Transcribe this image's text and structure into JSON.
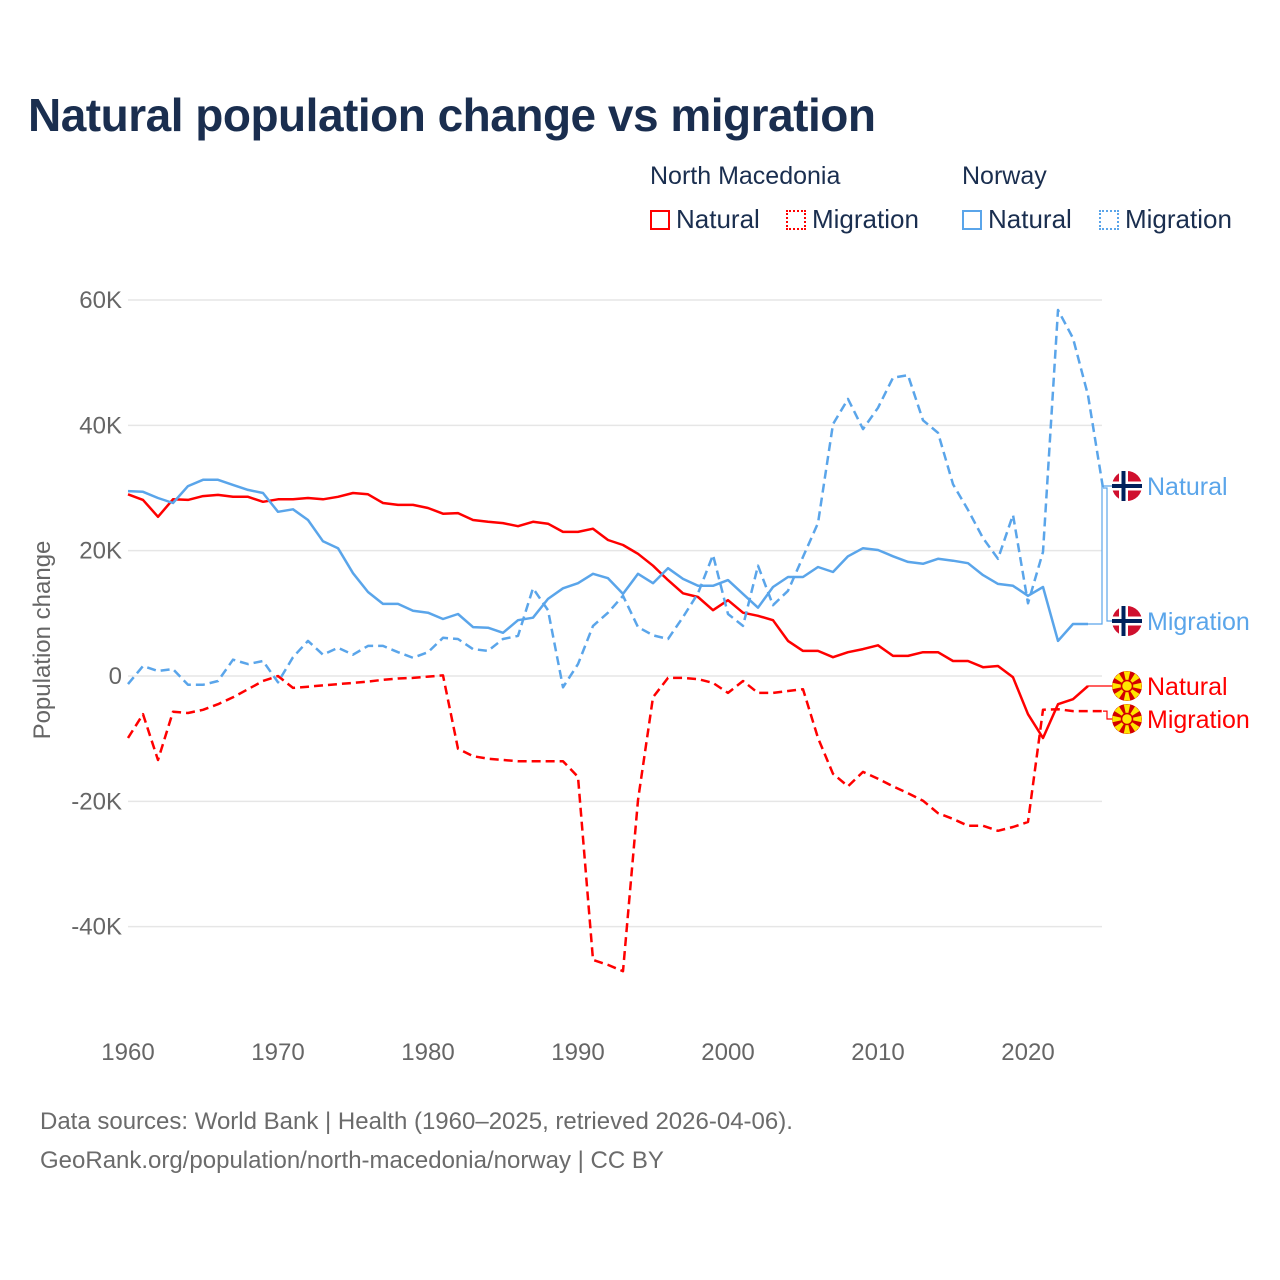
{
  "chart_data": {
    "type": "line",
    "title": "Natural population change vs migration",
    "xlabel": "",
    "ylabel": "Population change",
    "xlim": [
      1960,
      2025
    ],
    "ylim": [
      -50000,
      60000
    ],
    "x_ticks": [
      1960,
      1970,
      1980,
      1990,
      2000,
      2010,
      2020
    ],
    "x_tick_labels": [
      "1960",
      "1970",
      "1980",
      "1990",
      "2000",
      "2010",
      "2020"
    ],
    "y_ticks": [
      60000,
      40000,
      20000,
      0,
      -20000,
      -40000
    ],
    "y_tick_labels": [
      "60K",
      "40K",
      "20K",
      "0",
      "-20K",
      "-40K"
    ],
    "grid": true,
    "legend_placement": "top-right",
    "legend": {
      "groups": [
        {
          "name": "North Macedonia",
          "items": [
            "Natural",
            "Migration"
          ]
        },
        {
          "name": "Norway",
          "items": [
            "Natural",
            "Migration"
          ]
        }
      ]
    },
    "series": [
      {
        "name": "North Macedonia Natural",
        "country": "North Macedonia",
        "kind": "Natural",
        "label": "Natural",
        "color": "#ff0000",
        "dashed": false,
        "start_year": 1960,
        "values": [
          29000,
          28100,
          25400,
          28200,
          28100,
          28700,
          28900,
          28600,
          28600,
          27800,
          28200,
          28200,
          28400,
          28200,
          28600,
          29200,
          29000,
          27600,
          27300,
          27300,
          26800,
          25900,
          26000,
          24900,
          24600,
          24400,
          23900,
          24600,
          24300,
          23000,
          23000,
          23500,
          21700,
          20900,
          19500,
          17600,
          15300,
          13200,
          12600,
          10500,
          12100,
          10100,
          9600,
          8900,
          5600,
          4000,
          4000,
          3000,
          3800,
          4300,
          4900,
          3200,
          3200,
          3800,
          3800,
          2400,
          2400,
          1400,
          1600,
          -200,
          -6100,
          -9900,
          -4500,
          -3700,
          -1600
        ]
      },
      {
        "name": "North Macedonia Migration",
        "country": "North Macedonia",
        "kind": "Migration",
        "label": "Migration",
        "color": "#ff0000",
        "dashed": true,
        "start_year": 1960,
        "values": [
          -9900,
          -6100,
          -13400,
          -5700,
          -5900,
          -5400,
          -4500,
          -3400,
          -2100,
          -800,
          0,
          -1900,
          -1700,
          -1500,
          -1300,
          -1100,
          -900,
          -600,
          -400,
          -300,
          -100,
          100,
          -11600,
          -12800,
          -13200,
          -13400,
          -13600,
          -13600,
          -13600,
          -13600,
          -16100,
          -45300,
          -46100,
          -47100,
          -19800,
          -3400,
          -300,
          -300,
          -500,
          -1100,
          -2700,
          -800,
          -2700,
          -2700,
          -2400,
          -2100,
          -9900,
          -15600,
          -17600,
          -15300,
          -16400,
          -17600,
          -18700,
          -19900,
          -21900,
          -22800,
          -23900,
          -23900,
          -24700,
          -24100,
          -23300,
          -5400,
          -5300,
          -5600,
          -5600,
          -5600
        ]
      },
      {
        "name": "Norway Natural",
        "country": "Norway",
        "kind": "Natural",
        "label": "Natural",
        "color": "#5aa5ea",
        "dashed": false,
        "start_year": 1960,
        "values": [
          29500,
          29400,
          28400,
          27600,
          30300,
          31300,
          31300,
          30500,
          29700,
          29200,
          26200,
          26600,
          24900,
          21500,
          20400,
          16400,
          13400,
          11500,
          11500,
          10400,
          10100,
          9100,
          9900,
          7800,
          7700,
          6900,
          8900,
          9300,
          12300,
          14000,
          14800,
          16300,
          15600,
          13100,
          16300,
          14800,
          17200,
          15500,
          14400,
          14400,
          15300,
          13100,
          10900,
          14200,
          15800,
          15800,
          17400,
          16600,
          19100,
          20400,
          20100,
          19100,
          18200,
          17900,
          18700,
          18400,
          18000,
          16100,
          14700,
          14400,
          12800,
          14200,
          5600,
          8300,
          8300
        ]
      },
      {
        "name": "Norway Migration",
        "country": "Norway",
        "kind": "Migration",
        "label": "Migration",
        "color": "#5aa5ea",
        "dashed": true,
        "start_year": 1960,
        "values": [
          -1300,
          1600,
          800,
          1100,
          -1400,
          -1400,
          -800,
          2600,
          1900,
          2400,
          -1000,
          3000,
          5600,
          3400,
          4500,
          3400,
          4800,
          4800,
          3800,
          2900,
          3800,
          6100,
          5900,
          4300,
          4000,
          5900,
          6400,
          14000,
          10500,
          -1800,
          1900,
          8000,
          10100,
          12800,
          7800,
          6500,
          5900,
          9400,
          13200,
          19300,
          9900,
          8000,
          17600,
          11300,
          13600,
          19000,
          24400,
          40200,
          44200,
          39400,
          42800,
          47600,
          48000,
          40800,
          38800,
          30600,
          26500,
          22000,
          18700,
          25700,
          11600,
          19800,
          58400,
          53900,
          44800,
          30000
        ]
      }
    ]
  },
  "source_lines": [
    "Data sources: World Bank | Health (1960–2025, retrieved 2026-04-06).",
    "GeoRank.org/population/north-macedonia/norway | CC BY"
  ]
}
